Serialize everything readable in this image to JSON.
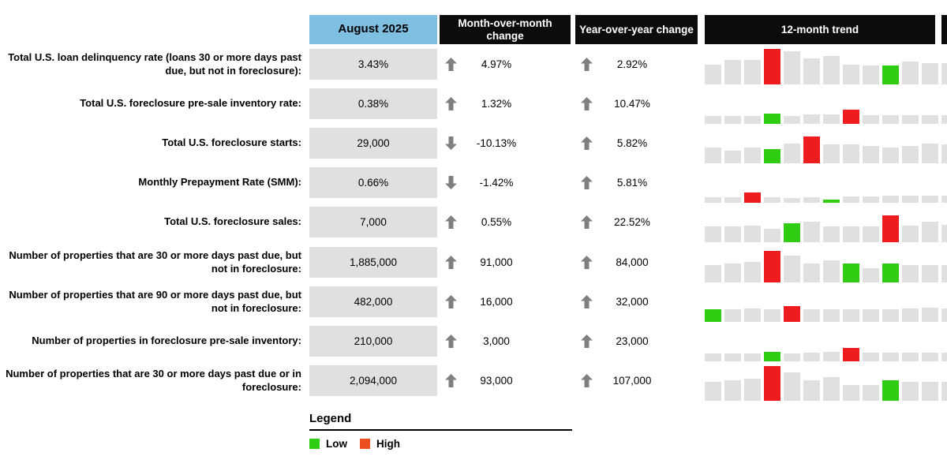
{
  "chart_data": {
    "type": "table",
    "columns": {
      "period": "August 2025",
      "mom": "Month-over-month change",
      "yoy": "Year-over-year change",
      "trend": "12-month trend"
    },
    "rows": [
      {
        "label": "Total U.S. loan delinquency rate (loans 30 or more days past due, but not in foreclosure):",
        "value": "3.43%",
        "mom_dir": "up",
        "mom": "4.97%",
        "yoy_dir": "up",
        "yoy": "2.92%",
        "trend_heights": [
          25,
          31,
          31,
          45,
          42,
          33,
          36,
          25,
          24,
          24,
          29,
          27,
          27
        ],
        "trend_colors": [
          "gray",
          "gray",
          "gray",
          "red",
          "gray",
          "gray",
          "gray",
          "gray",
          "gray",
          "green",
          "gray",
          "gray",
          "gray"
        ]
      },
      {
        "label": "Total U.S. foreclosure pre-sale inventory rate:",
        "value": "0.38%",
        "mom_dir": "up",
        "mom": "1.32%",
        "yoy_dir": "up",
        "yoy": "10.47%",
        "trend_heights": [
          10,
          10,
          10,
          13,
          10,
          12,
          12,
          18,
          11,
          11,
          11,
          11,
          11
        ],
        "trend_colors": [
          "gray",
          "gray",
          "gray",
          "green",
          "gray",
          "gray",
          "gray",
          "red",
          "gray",
          "gray",
          "gray",
          "gray",
          "gray"
        ]
      },
      {
        "label": "Total U.S. foreclosure starts:",
        "value": "29,000",
        "mom_dir": "down",
        "mom": "-10.13%",
        "yoy_dir": "up",
        "yoy": "5.82%",
        "trend_heights": [
          20,
          16,
          20,
          18,
          25,
          34,
          24,
          24,
          22,
          20,
          22,
          25,
          24
        ],
        "trend_colors": [
          "gray",
          "gray",
          "gray",
          "green",
          "gray",
          "red",
          "gray",
          "gray",
          "gray",
          "gray",
          "gray",
          "gray",
          "gray"
        ]
      },
      {
        "label": "Monthly Prepayment Rate (SMM):",
        "value": "0.66%",
        "mom_dir": "down",
        "mom": "-1.42%",
        "yoy_dir": "up",
        "yoy": "5.81%",
        "trend_heights": [
          7,
          7,
          13,
          7,
          6,
          7,
          4,
          8,
          8,
          9,
          9,
          9,
          9
        ],
        "trend_colors": [
          "gray",
          "gray",
          "red",
          "gray",
          "gray",
          "gray",
          "green",
          "gray",
          "gray",
          "gray",
          "gray",
          "gray",
          "gray"
        ]
      },
      {
        "label": "Total U.S. foreclosure sales:",
        "value": "7,000",
        "mom_dir": "up",
        "mom": "0.55%",
        "yoy_dir": "up",
        "yoy": "22.52%",
        "trend_heights": [
          20,
          20,
          21,
          17,
          24,
          26,
          20,
          20,
          20,
          34,
          21,
          26,
          22
        ],
        "trend_colors": [
          "gray",
          "gray",
          "gray",
          "gray",
          "green",
          "gray",
          "gray",
          "gray",
          "gray",
          "red",
          "gray",
          "gray",
          "gray"
        ]
      },
      {
        "label": "Number of properties that are 30 or more days past due, but not in foreclosure:",
        "value": "1,885,000",
        "mom_dir": "up",
        "mom": "91,000",
        "yoy_dir": "up",
        "yoy": "84,000",
        "group_start": true,
        "trend_heights": [
          22,
          24,
          26,
          40,
          34,
          24,
          28,
          24,
          18,
          24,
          22,
          22,
          22
        ],
        "trend_colors": [
          "gray",
          "gray",
          "gray",
          "red",
          "gray",
          "gray",
          "gray",
          "green",
          "gray",
          "green",
          "gray",
          "gray",
          "gray"
        ]
      },
      {
        "label": "Number of properties that are 90 or more days past due, but not in foreclosure:",
        "value": "482,000",
        "mom_dir": "up",
        "mom": "16,000",
        "yoy_dir": "up",
        "yoy": "32,000",
        "trend_heights": [
          16,
          16,
          17,
          16,
          20,
          16,
          16,
          16,
          16,
          16,
          17,
          18,
          17
        ],
        "trend_colors": [
          "green",
          "gray",
          "gray",
          "gray",
          "red",
          "gray",
          "gray",
          "gray",
          "gray",
          "gray",
          "gray",
          "gray",
          "gray"
        ]
      },
      {
        "label": "Number of properties in foreclosure pre-sale inventory:",
        "value": "210,000",
        "mom_dir": "up",
        "mom": "3,000",
        "yoy_dir": "up",
        "yoy": "23,000",
        "trend_heights": [
          10,
          10,
          10,
          12,
          10,
          11,
          12,
          17,
          11,
          11,
          11,
          11,
          11
        ],
        "trend_colors": [
          "gray",
          "gray",
          "gray",
          "green",
          "gray",
          "gray",
          "gray",
          "red",
          "gray",
          "gray",
          "gray",
          "gray",
          "gray"
        ]
      },
      {
        "label": "Number of properties that are 30 or more days past due or in foreclosure:",
        "value": "2,094,000",
        "mom_dir": "up",
        "mom": "93,000",
        "yoy_dir": "up",
        "yoy": "107,000",
        "trend_heights": [
          24,
          26,
          28,
          44,
          36,
          26,
          30,
          20,
          20,
          26,
          24,
          24,
          24
        ],
        "trend_colors": [
          "gray",
          "gray",
          "gray",
          "red",
          "gray",
          "gray",
          "gray",
          "gray",
          "gray",
          "green",
          "gray",
          "gray",
          "gray"
        ]
      }
    ],
    "legend": {
      "title": "Legend",
      "items": [
        {
          "label": "Low",
          "color_key": "bar_green"
        },
        {
          "label": "High",
          "color_key": "legend_high"
        }
      ]
    }
  },
  "colors": {
    "header_blue": "#7fbfe2",
    "header_black": "#0c0c0c",
    "cell_gray": "#e0e0e0",
    "bar_gray": "#e0e0e0",
    "bar_red": "#ee1c1c",
    "bar_green": "#2fcc11",
    "legend_high": "#ee4f1e",
    "arrow_gray": "#7f7f7f"
  }
}
